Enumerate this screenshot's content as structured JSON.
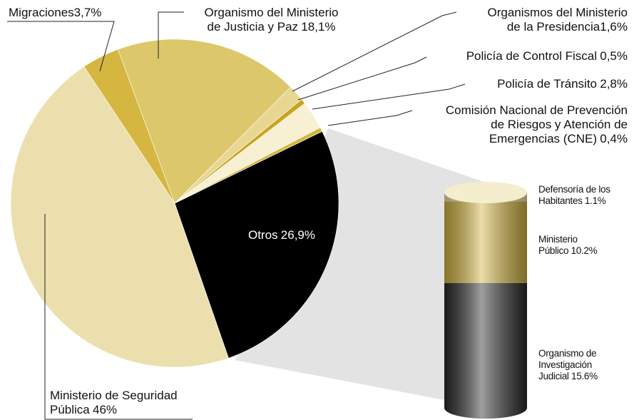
{
  "chart_data": [
    {
      "type": "pie",
      "categories": [
        "Otros",
        "Ministerio de Seguridad Pública",
        "Migraciones",
        "Organismo del Ministerio de Justicia y Paz",
        "Organismos del Ministerio de la Presidencia",
        "Policía de Control Fiscal",
        "Policía de Tránsito",
        "Comisión Nacional de Prevención de Riesgos y Atención de Emergencias (CNE)"
      ],
      "values": [
        26.9,
        46,
        3.7,
        18.1,
        1.6,
        0.5,
        2.8,
        0.4
      ],
      "value_labels": [
        "26,9%",
        "46%",
        "3,7%",
        "18,1%",
        "1,6%",
        "0,5%",
        "2,8%",
        "0,4%"
      ],
      "colors": [
        "#000000",
        "#ecdfae",
        "#d4b640",
        "#dcc76a",
        "#e8d793",
        "#c9a51e",
        "#f7f0d2",
        "#d4b640"
      ]
    },
    {
      "type": "bar",
      "stacked": true,
      "series": [
        {
          "name": "Organismo de Investigación Judicial",
          "color": "#2a2a2a",
          "values": [
            15.6
          ],
          "value_labels": [
            "15.6%"
          ]
        },
        {
          "name": "Ministerio Público",
          "color": "#d4b640",
          "values": [
            10.2
          ],
          "value_labels": [
            "10.2%"
          ]
        },
        {
          "name": "Defensoría de los Habitantes",
          "color": "#efe3b4",
          "values": [
            1.1
          ],
          "value_labels": [
            "1.1%"
          ]
        }
      ]
    }
  ]
}
